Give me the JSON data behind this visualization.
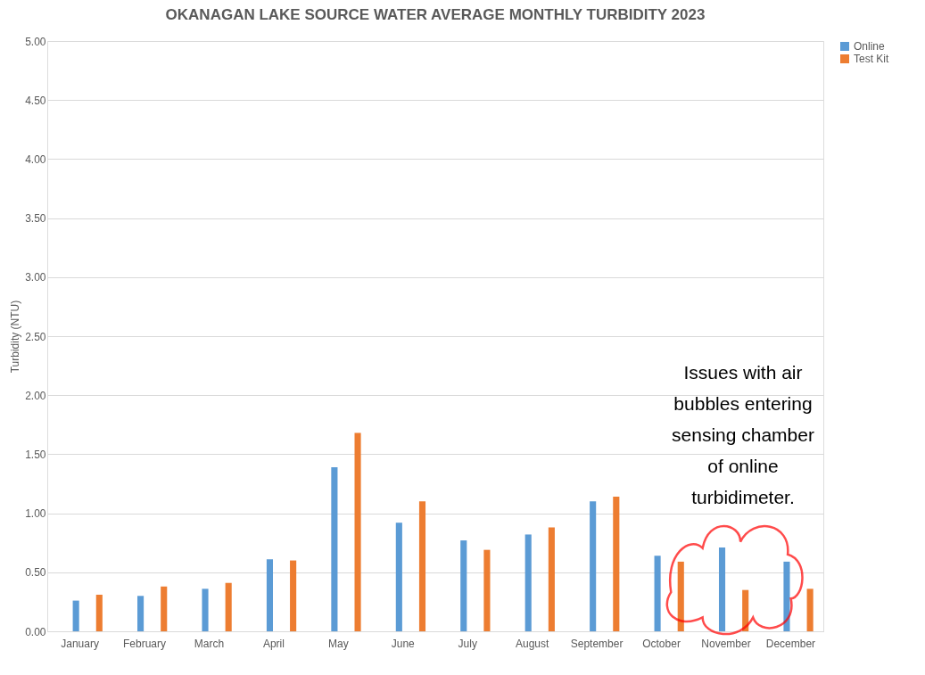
{
  "chart_data": {
    "type": "bar",
    "title": "OKANAGAN LAKE SOURCE WATER AVERAGE MONTHLY TURBIDITY 2023",
    "ylabel": "Turbidity (NTU)",
    "categories": [
      "January",
      "February",
      "March",
      "April",
      "May",
      "June",
      "July",
      "August",
      "September",
      "October",
      "November",
      "December"
    ],
    "series": [
      {
        "name": "Online",
        "color": "#5b9bd5",
        "values": [
          0.26,
          0.3,
          0.36,
          0.61,
          1.39,
          0.92,
          0.77,
          0.82,
          1.1,
          0.64,
          0.71,
          0.59
        ]
      },
      {
        "name": "Test Kit",
        "color": "#ed7d31",
        "values": [
          0.31,
          0.38,
          0.41,
          0.6,
          1.68,
          1.1,
          0.69,
          0.88,
          1.14,
          0.59,
          0.35,
          0.36
        ]
      }
    ],
    "ylim": [
      0,
      5
    ],
    "yticks": [
      {
        "value": 0,
        "label": "0.00"
      },
      {
        "value": 0.5,
        "label": "0.50"
      },
      {
        "value": 1,
        "label": "1.00"
      },
      {
        "value": 1.5,
        "label": "1.50"
      },
      {
        "value": 2,
        "label": "2.00"
      },
      {
        "value": 2.5,
        "label": "2.50"
      },
      {
        "value": 3,
        "label": "3.00"
      },
      {
        "value": 3.5,
        "label": "3.50"
      },
      {
        "value": 4,
        "label": "4.00"
      },
      {
        "value": 4.5,
        "label": "4.50"
      },
      {
        "value": 5,
        "label": "5.00"
      }
    ],
    "grid": "y",
    "legend": "right",
    "annotations": [
      "Issues with air bubbles entering sensing chamber of online turbidimeter."
    ]
  }
}
